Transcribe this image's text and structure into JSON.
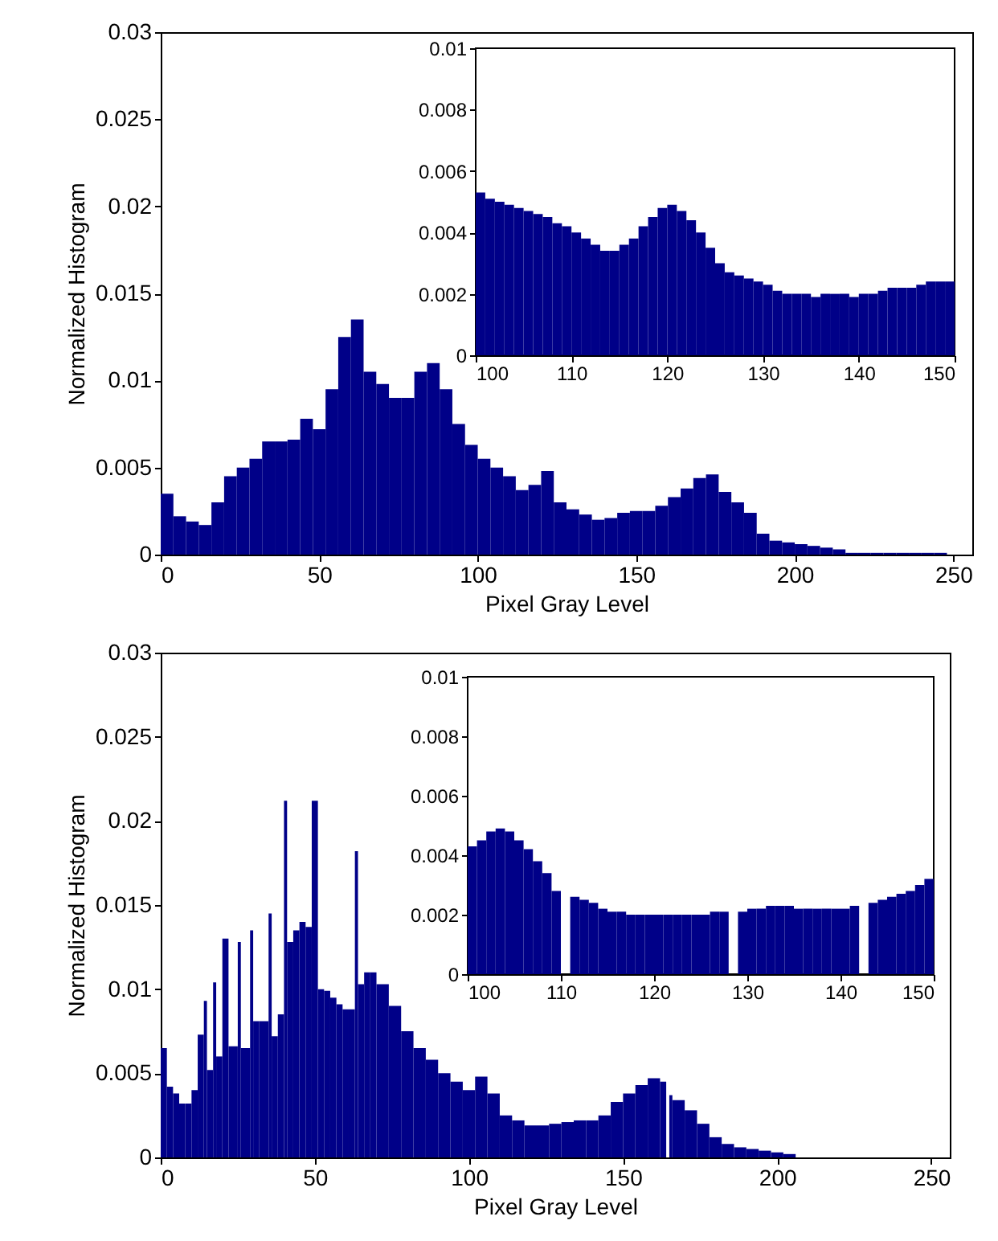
{
  "chart_data": [
    {
      "type": "histogram",
      "xlabel": "Pixel Gray Level",
      "ylabel": "Normalized Histogram",
      "color": "#000088",
      "bins": [
        0,
        4,
        8,
        12,
        16,
        20,
        24,
        28,
        32,
        36,
        40,
        44,
        48,
        52,
        56,
        60,
        64,
        68,
        72,
        76,
        80,
        84,
        88,
        92,
        96,
        100,
        104,
        108,
        112,
        116,
        120,
        124,
        128,
        132,
        136,
        140,
        144,
        148,
        152,
        156,
        160,
        164,
        168,
        172,
        176,
        180,
        184,
        188,
        192,
        196,
        200,
        204,
        208,
        212,
        216,
        220,
        224,
        228,
        232,
        236,
        240,
        244,
        248,
        252,
        256
      ],
      "values": [
        0.0035,
        0.0022,
        0.0019,
        0.0017,
        0.003,
        0.0045,
        0.005,
        0.0055,
        0.0065,
        0.0065,
        0.0066,
        0.0078,
        0.0072,
        0.0095,
        0.0125,
        0.0135,
        0.0105,
        0.0098,
        0.009,
        0.009,
        0.0105,
        0.011,
        0.0095,
        0.0075,
        0.0063,
        0.0055,
        0.005,
        0.0045,
        0.0037,
        0.004,
        0.0048,
        0.003,
        0.0026,
        0.0023,
        0.002,
        0.0021,
        0.0024,
        0.0025,
        0.0025,
        0.0028,
        0.0033,
        0.0038,
        0.0044,
        0.0046,
        0.0036,
        0.003,
        0.0024,
        0.0012,
        0.0008,
        0.0007,
        0.0006,
        0.0005,
        0.0004,
        0.0003,
        0.0001,
        0.0001,
        0.0001,
        0.0001,
        0.0001,
        0.0001,
        0.0001,
        0.0001,
        0,
        0
      ],
      "xlim": [
        0,
        256
      ],
      "xticks": [
        0,
        50,
        100,
        150,
        200,
        250
      ],
      "ylim": [
        0,
        0.03
      ],
      "yticks": [
        0,
        0.005,
        0.01,
        0.015,
        0.02,
        0.025,
        0.03
      ]
    },
    {
      "type": "histogram",
      "color": "#000088",
      "bins": [
        100,
        101,
        102,
        103,
        104,
        105,
        106,
        107,
        108,
        109,
        110,
        111,
        112,
        113,
        114,
        115,
        116,
        117,
        118,
        119,
        120,
        121,
        122,
        123,
        124,
        125,
        126,
        127,
        128,
        129,
        130,
        131,
        132,
        133,
        134,
        135,
        136,
        137,
        138,
        139,
        140,
        141,
        142,
        143,
        144,
        145,
        146,
        147,
        148,
        149,
        150
      ],
      "values": [
        0.0053,
        0.0051,
        0.005,
        0.0049,
        0.0048,
        0.0047,
        0.0046,
        0.0045,
        0.0043,
        0.0042,
        0.004,
        0.0038,
        0.0036,
        0.0034,
        0.0034,
        0.0036,
        0.0038,
        0.0042,
        0.0045,
        0.0048,
        0.0049,
        0.0047,
        0.0044,
        0.004,
        0.0035,
        0.003,
        0.0027,
        0.0026,
        0.0025,
        0.0024,
        0.0023,
        0.0021,
        0.002,
        0.002,
        0.002,
        0.0019,
        0.002,
        0.002,
        0.002,
        0.0019,
        0.002,
        0.002,
        0.0021,
        0.0022,
        0.0022,
        0.0022,
        0.0023,
        0.0024,
        0.0024,
        0.0024
      ],
      "xlim": [
        100,
        150
      ],
      "xticks": [
        100,
        110,
        120,
        130,
        140,
        150
      ],
      "ylim": [
        0,
        0.01
      ],
      "yticks": [
        0,
        0.002,
        0.004,
        0.006,
        0.008,
        0.01
      ]
    },
    {
      "type": "histogram",
      "xlabel": "Pixel Gray Level",
      "ylabel": "Normalized Histogram",
      "color": "#000088",
      "bins": [
        0,
        2,
        4,
        6,
        8,
        10,
        12,
        14,
        15,
        17,
        18,
        20,
        22,
        25,
        26,
        29,
        30,
        32,
        35,
        36,
        38,
        40,
        41,
        43,
        45,
        47,
        49,
        51,
        53,
        55,
        57,
        59,
        61,
        63,
        64,
        66,
        68,
        70,
        74,
        78,
        82,
        86,
        90,
        94,
        98,
        102,
        106,
        110,
        114,
        118,
        122,
        126,
        130,
        134,
        138,
        142,
        146,
        150,
        154,
        158,
        162,
        164,
        165,
        166,
        170,
        174,
        178,
        182,
        186,
        190,
        194,
        198,
        202,
        206
      ],
      "values": [
        0.0065,
        0.0042,
        0.0038,
        0.0032,
        0.0032,
        0.004,
        0.0073,
        0.0093,
        0.0052,
        0.0104,
        0.006,
        0.013,
        0.0066,
        0.0128,
        0.0065,
        0.0135,
        0.0081,
        0.0081,
        0.0145,
        0.0072,
        0.0085,
        0.0212,
        0.0128,
        0.0135,
        0.014,
        0.0137,
        0.0212,
        0.01,
        0.0099,
        0.0095,
        0.0091,
        0.0088,
        0.0088,
        0.0182,
        0.0103,
        0.011,
        0.011,
        0.0103,
        0.009,
        0.0075,
        0.0065,
        0.0058,
        0.005,
        0.0045,
        0.004,
        0.0048,
        0.0038,
        0.0025,
        0.0022,
        0.0019,
        0.0019,
        0.002,
        0.0021,
        0.0022,
        0.0022,
        0.0025,
        0.0033,
        0.0038,
        0.0043,
        0.0047,
        0.0045,
        0,
        0.0037,
        0.0034,
        0.0028,
        0.002,
        0.0012,
        0.0008,
        0.0006,
        0.0005,
        0.0004,
        0.0003,
        0.0002
      ],
      "xlim": [
        0,
        256
      ],
      "xticks": [
        0,
        50,
        100,
        150,
        200,
        250
      ],
      "ylim": [
        0,
        0.03
      ],
      "yticks": [
        0,
        0.005,
        0.01,
        0.015,
        0.02,
        0.025,
        0.03
      ]
    },
    {
      "type": "histogram",
      "color": "#000088",
      "bins": [
        100,
        101,
        102,
        103,
        104,
        105,
        106,
        107,
        108,
        109,
        110,
        111,
        112,
        113,
        114,
        115,
        116,
        117,
        118,
        119,
        120,
        121,
        122,
        123,
        124,
        125,
        126,
        127,
        128,
        129,
        130,
        131,
        132,
        133,
        134,
        135,
        136,
        137,
        138,
        139,
        140,
        141,
        142,
        143,
        144,
        145,
        146,
        147,
        148,
        149,
        150
      ],
      "values": [
        0.0043,
        0.0045,
        0.0048,
        0.0049,
        0.0048,
        0.0045,
        0.0042,
        0.0038,
        0.0034,
        0.0028,
        0,
        0.0026,
        0.0025,
        0.0024,
        0.0022,
        0.0021,
        0.0021,
        0.002,
        0.002,
        0.002,
        0.002,
        0.002,
        0.002,
        0.002,
        0.002,
        0.002,
        0.0021,
        0.0021,
        0,
        0.0021,
        0.0022,
        0.0022,
        0.0023,
        0.0023,
        0.0023,
        0.0022,
        0.0022,
        0.0022,
        0.0022,
        0.0022,
        0.0022,
        0.0023,
        0,
        0.0024,
        0.0025,
        0.0026,
        0.0027,
        0.0028,
        0.003,
        0.0032
      ],
      "xlim": [
        100,
        150
      ],
      "xticks": [
        100,
        110,
        120,
        130,
        140,
        150
      ],
      "ylim": [
        0,
        0.01
      ],
      "yticks": [
        0,
        0.002,
        0.004,
        0.006,
        0.008,
        0.01
      ]
    }
  ]
}
